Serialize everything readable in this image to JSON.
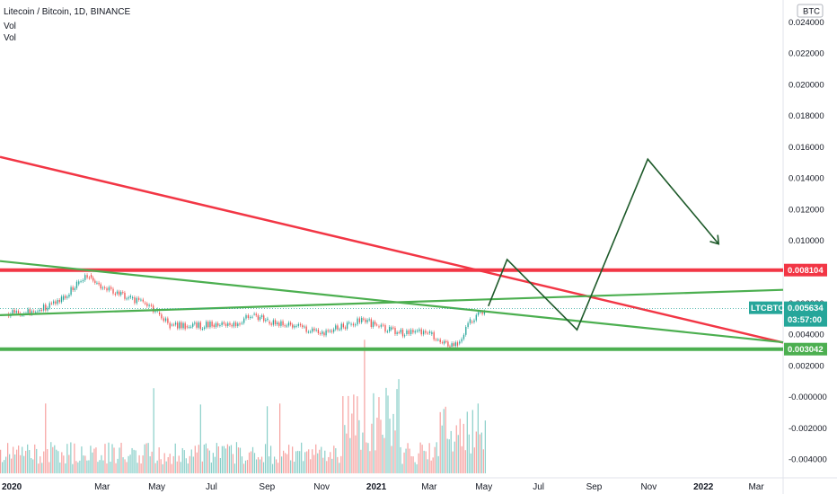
{
  "header": {
    "title": "Litecoin / Bitcoin, 1D, BINANCE",
    "vol1": "Vol",
    "vol2": "Vol",
    "currency_badge": "BTC"
  },
  "colors": {
    "red_line": "#f23645",
    "green_line": "#4caf50",
    "drawing": "#1e5a2a",
    "candle_up": "#26a69a",
    "candle_down": "#ef5350",
    "price_badge": "#26a69a"
  },
  "chart_data": {
    "type": "line",
    "symbol": "LTCBTC",
    "y_ticks": [
      "0.024000",
      "0.022000",
      "0.020000",
      "0.018000",
      "0.016000",
      "0.014000",
      "0.012000",
      "0.010000",
      "0.008000",
      "0.006000",
      "0.004000",
      "0.002000",
      "-0.000000",
      "-0.002000",
      "-0.004000"
    ],
    "y_tick_values": [
      0.024,
      0.022,
      0.02,
      0.018,
      0.016,
      0.014,
      0.012,
      0.01,
      0.008,
      0.006,
      0.004,
      0.002,
      0.0,
      -0.002,
      -0.004
    ],
    "ylim": [
      -0.0052,
      0.0254
    ],
    "x_labels": [
      "2020",
      "Mar",
      "May",
      "Jul",
      "Sep",
      "Nov",
      "2021",
      "Mar",
      "May",
      "Jul",
      "Sep",
      "Nov",
      "2022",
      "Mar"
    ],
    "x_label_dates": [
      "2020-01-01",
      "2020-03-01",
      "2020-05-01",
      "2020-07-01",
      "2020-09-01",
      "2020-11-01",
      "2021-01-01",
      "2021-03-01",
      "2021-05-01",
      "2021-07-01",
      "2021-09-01",
      "2021-11-01",
      "2022-01-01",
      "2022-03-01"
    ],
    "price_series": {
      "dates": [
        "2019-11-15",
        "2019-12-15",
        "2020-01-15",
        "2020-02-01",
        "2020-02-15",
        "2020-03-01",
        "2020-03-15",
        "2020-04-01",
        "2020-04-15",
        "2020-05-01",
        "2020-05-15",
        "2020-06-01",
        "2020-07-01",
        "2020-08-01",
        "2020-08-15",
        "2020-09-01",
        "2020-10-01",
        "2020-11-01",
        "2020-12-01",
        "2020-12-15",
        "2021-01-01",
        "2021-01-15",
        "2021-02-01",
        "2021-02-15",
        "2021-03-01",
        "2021-03-15",
        "2021-04-01",
        "2021-04-15",
        "2021-05-01"
      ],
      "values": [
        0.0053,
        0.0054,
        0.0062,
        0.0072,
        0.0078,
        0.007,
        0.0066,
        0.0063,
        0.006,
        0.0054,
        0.0046,
        0.0045,
        0.0046,
        0.0047,
        0.0053,
        0.0048,
        0.0045,
        0.0041,
        0.0046,
        0.005,
        0.0045,
        0.0043,
        0.004,
        0.0042,
        0.004,
        0.0034,
        0.0034,
        0.0048,
        0.0056
      ]
    },
    "volume_bars": 27,
    "lines": [
      {
        "color": "red",
        "from": [
          "2019-11-08",
          0.01535
        ],
        "to": [
          "2022-03-31",
          0.00346
        ]
      },
      {
        "color": "red",
        "horizontal": 0.008104
      },
      {
        "color": "green",
        "from": [
          "2019-11-08",
          0.00868
        ],
        "to": [
          "2022-03-31",
          0.00348
        ]
      },
      {
        "color": "green",
        "from": [
          "2019-11-08",
          0.00522
        ],
        "to": [
          "2022-03-31",
          0.00684
        ]
      },
      {
        "color": "green",
        "horizontal": 0.003042
      }
    ],
    "projection": {
      "dates": [
        "2021-05-06",
        "2021-05-27",
        "2021-08-13",
        "2021-10-31",
        "2022-01-18"
      ],
      "values": [
        0.0058,
        0.00878,
        0.00428,
        0.01521,
        0.00978
      ]
    },
    "price_labels": [
      {
        "text": "0.008104",
        "value": 0.008104,
        "color": "red"
      },
      {
        "text": "0.003042",
        "value": 0.003042,
        "color": "green"
      }
    ],
    "current": {
      "symbol": "LTCBTC",
      "price": "0.005634",
      "countdown": "03:57:00",
      "value": 0.005634
    }
  }
}
